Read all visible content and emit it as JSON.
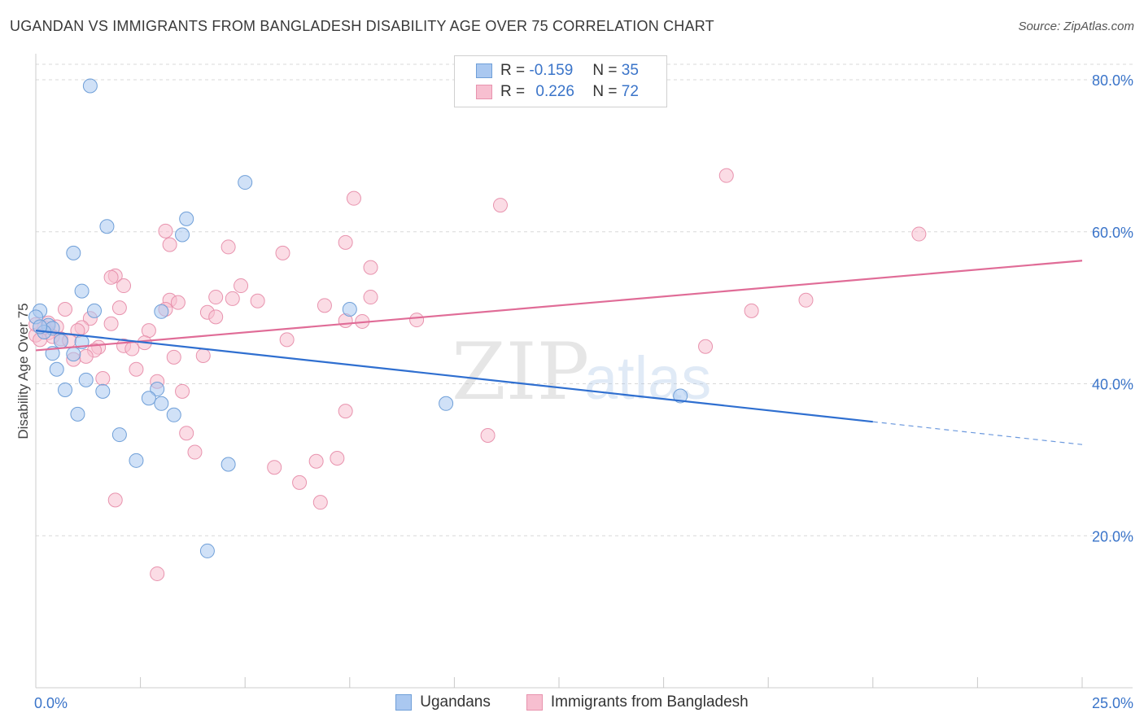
{
  "title": "UGANDAN VS IMMIGRANTS FROM BANGLADESH DISABILITY AGE OVER 75 CORRELATION CHART",
  "source": "Source: ZipAtlas.com",
  "watermark": {
    "zip": "ZIP",
    "atlas": "atlas"
  },
  "legend": {
    "rows": [
      {
        "r_label": "R =",
        "r_value": "-0.159",
        "n_label": "N =",
        "n_value": "35"
      },
      {
        "r_label": "R =",
        "r_value": "0.226",
        "n_label": "N =",
        "n_value": "72"
      }
    ]
  },
  "bottom_legend": [
    "Ugandans",
    "Immigrants from Bangladesh"
  ],
  "colors": {
    "blue_fill": "#aac8f0",
    "blue_stroke": "#6f9fd8",
    "blue_line": "#2f6fd0",
    "pink_fill": "#f7bfd0",
    "pink_stroke": "#e893ae",
    "pink_line": "#e06c97",
    "tick_label": "#3a74c9",
    "grid": "#d8d8d8"
  },
  "chart_data": {
    "type": "scatter",
    "title": "UGANDAN VS IMMIGRANTS FROM BANGLADESH DISABILITY AGE OVER 75 CORRELATION CHART",
    "xlabel": "",
    "ylabel": "Disability Age Over 75",
    "xlim": [
      0,
      25
    ],
    "ylim": [
      0,
      83
    ],
    "x_tick_labels": [
      "0.0%",
      "25.0%"
    ],
    "x_ticks": [
      0,
      25
    ],
    "y_tick_labels": [
      "20.0%",
      "40.0%",
      "60.0%",
      "80.0%"
    ],
    "y_ticks": [
      20,
      40,
      60,
      80
    ],
    "grid": true,
    "legend_position": "top-center",
    "series": [
      {
        "name": "Ugandans",
        "r": -0.159,
        "n": 35,
        "trend": {
          "x0": 0,
          "y0": 47.0,
          "x1": 20,
          "y1": 35.0,
          "dash_to_x": 25,
          "dash_to_y": 32.0
        },
        "points": [
          [
            1.3,
            79.2
          ],
          [
            5.0,
            66.5
          ],
          [
            3.6,
            61.7
          ],
          [
            1.7,
            60.7
          ],
          [
            3.5,
            59.6
          ],
          [
            0.9,
            57.2
          ],
          [
            1.1,
            52.2
          ],
          [
            0.1,
            49.6
          ],
          [
            1.4,
            49.6
          ],
          [
            3.0,
            49.5
          ],
          [
            7.5,
            49.8
          ],
          [
            0.0,
            48.8
          ],
          [
            0.3,
            47.7
          ],
          [
            0.4,
            47.3
          ],
          [
            0.2,
            46.8
          ],
          [
            0.6,
            45.6
          ],
          [
            1.1,
            45.5
          ],
          [
            0.4,
            44.0
          ],
          [
            0.9,
            43.9
          ],
          [
            0.5,
            41.9
          ],
          [
            1.2,
            40.5
          ],
          [
            0.7,
            39.2
          ],
          [
            1.6,
            39.0
          ],
          [
            2.9,
            39.3
          ],
          [
            2.7,
            38.1
          ],
          [
            3.0,
            37.4
          ],
          [
            9.8,
            37.4
          ],
          [
            15.4,
            38.4
          ],
          [
            1.0,
            36.0
          ],
          [
            3.3,
            35.9
          ],
          [
            2.0,
            33.3
          ],
          [
            2.4,
            29.9
          ],
          [
            4.6,
            29.4
          ],
          [
            4.1,
            18.0
          ],
          [
            0.1,
            47.5
          ]
        ]
      },
      {
        "name": "Immigrants from Bangladesh",
        "r": 0.226,
        "n": 72,
        "trend": {
          "x0": 0,
          "y0": 44.4,
          "x1": 25,
          "y1": 56.2
        },
        "points": [
          [
            16.5,
            67.4
          ],
          [
            7.6,
            64.4
          ],
          [
            11.1,
            63.5
          ],
          [
            21.1,
            59.7
          ],
          [
            3.1,
            60.1
          ],
          [
            3.2,
            58.3
          ],
          [
            4.6,
            58.0
          ],
          [
            7.4,
            58.6
          ],
          [
            5.9,
            57.2
          ],
          [
            8.0,
            55.3
          ],
          [
            1.9,
            54.2
          ],
          [
            1.8,
            54.0
          ],
          [
            2.1,
            52.9
          ],
          [
            4.9,
            52.9
          ],
          [
            4.3,
            51.4
          ],
          [
            4.7,
            51.2
          ],
          [
            8.0,
            51.4
          ],
          [
            3.2,
            51.0
          ],
          [
            3.4,
            50.7
          ],
          [
            5.3,
            50.9
          ],
          [
            6.9,
            50.3
          ],
          [
            18.4,
            51.0
          ],
          [
            2.0,
            50.0
          ],
          [
            3.1,
            49.8
          ],
          [
            17.1,
            49.6
          ],
          [
            4.1,
            49.4
          ],
          [
            0.7,
            49.8
          ],
          [
            1.3,
            48.6
          ],
          [
            4.3,
            48.8
          ],
          [
            7.4,
            48.3
          ],
          [
            7.8,
            48.2
          ],
          [
            9.1,
            48.4
          ],
          [
            1.8,
            47.9
          ],
          [
            0.2,
            47.4
          ],
          [
            0.5,
            47.5
          ],
          [
            1.1,
            47.4
          ],
          [
            1.0,
            47.0
          ],
          [
            2.7,
            47.0
          ],
          [
            0.3,
            46.7
          ],
          [
            0.0,
            46.4
          ],
          [
            0.4,
            46.2
          ],
          [
            0.6,
            45.9
          ],
          [
            0.8,
            45.7
          ],
          [
            0.1,
            45.8
          ],
          [
            6.0,
            45.8
          ],
          [
            2.6,
            45.4
          ],
          [
            2.1,
            45.0
          ],
          [
            1.5,
            44.8
          ],
          [
            2.3,
            44.6
          ],
          [
            1.4,
            44.4
          ],
          [
            16.0,
            44.9
          ],
          [
            4.0,
            43.7
          ],
          [
            3.3,
            43.5
          ],
          [
            1.2,
            43.6
          ],
          [
            0.9,
            43.2
          ],
          [
            2.4,
            41.9
          ],
          [
            1.6,
            40.7
          ],
          [
            3.5,
            39.0
          ],
          [
            7.4,
            36.4
          ],
          [
            2.9,
            40.3
          ],
          [
            10.8,
            33.2
          ],
          [
            3.6,
            33.5
          ],
          [
            3.8,
            31.0
          ],
          [
            7.2,
            30.2
          ],
          [
            6.7,
            29.8
          ],
          [
            5.7,
            29.0
          ],
          [
            6.3,
            27.0
          ],
          [
            1.9,
            24.7
          ],
          [
            6.8,
            24.4
          ],
          [
            2.9,
            15.0
          ],
          [
            0.3,
            48.0
          ],
          [
            0.0,
            47.8
          ]
        ]
      }
    ]
  }
}
